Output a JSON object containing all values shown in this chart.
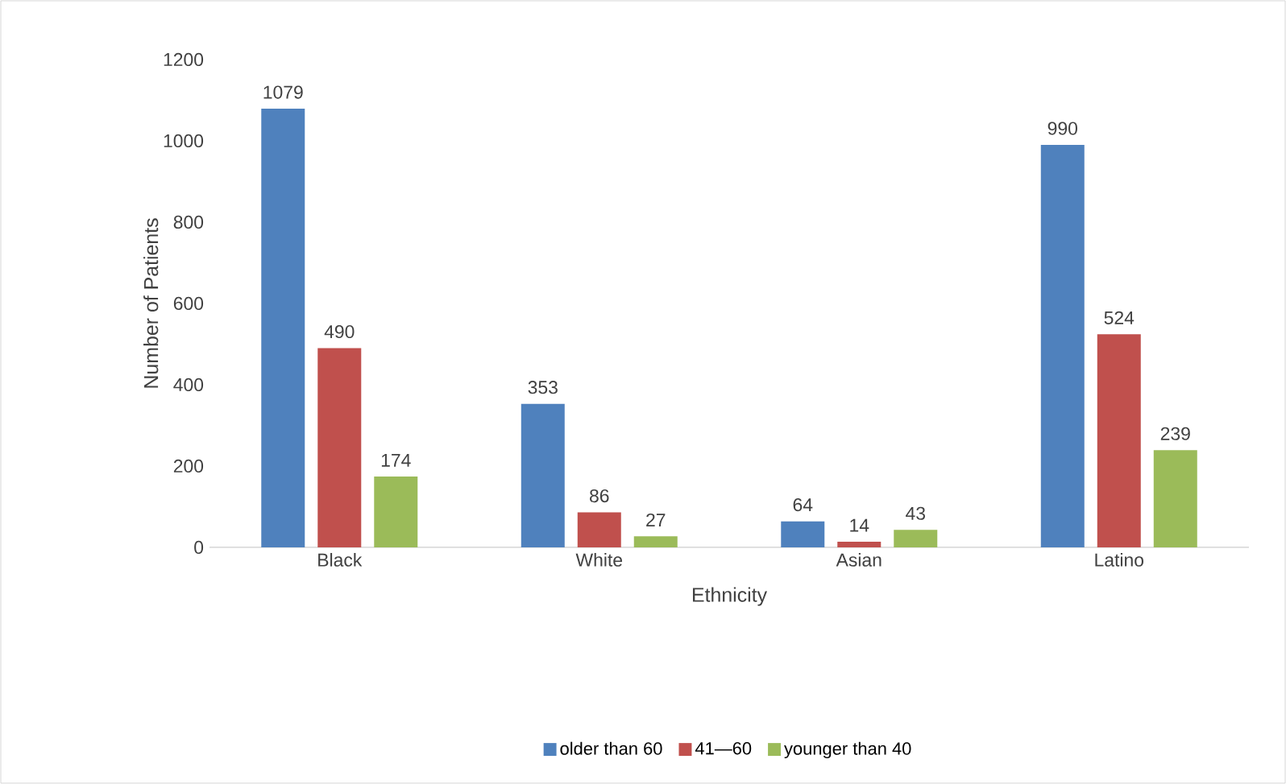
{
  "chart_data": {
    "type": "bar",
    "xlabel": "Ethnicity",
    "ylabel": "Number of Patients",
    "categories": [
      "Black",
      "White",
      "Asian",
      "Latino"
    ],
    "series": [
      {
        "name": "older than 60",
        "color": "#4f81bd",
        "values": [
          1079,
          353,
          64,
          990
        ]
      },
      {
        "name": "41—60",
        "color": "#c0504d",
        "values": [
          490,
          86,
          14,
          524
        ]
      },
      {
        "name": "younger than 40",
        "color": "#9bbb59",
        "values": [
          174,
          27,
          43,
          239
        ]
      }
    ],
    "ylim": [
      0,
      1200
    ],
    "yticks": [
      0,
      200,
      400,
      600,
      800,
      1000,
      1200
    ],
    "data_labels": true,
    "legend": "bottom"
  }
}
